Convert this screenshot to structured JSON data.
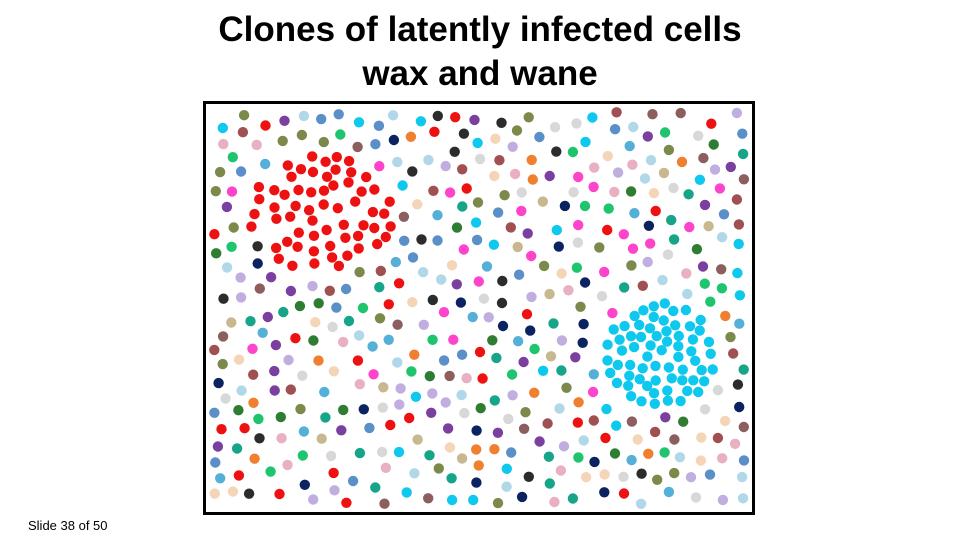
{
  "slide": {
    "title_line1": "Clones of latently infected cells",
    "title_line2": "wax and wane",
    "footer": "Slide 38 of 50"
  },
  "colors": {
    "red_clone": "#ee1111",
    "cyan_clone": "#0fc8ee",
    "palette": [
      "#2e7d32",
      "#1ec46e",
      "#a05050",
      "#7b8a4a",
      "#c8b890",
      "#17a589",
      "#ff44cc",
      "#7b3fa0",
      "#f5d5b8",
      "#2c2c2c",
      "#0b2360",
      "#5b8fc7",
      "#8c5e5e",
      "#55b0d8",
      "#f08030",
      "#c0aee0",
      "#d8d8d8",
      "#b0d8e8",
      "#e8b0c0"
    ]
  }
}
